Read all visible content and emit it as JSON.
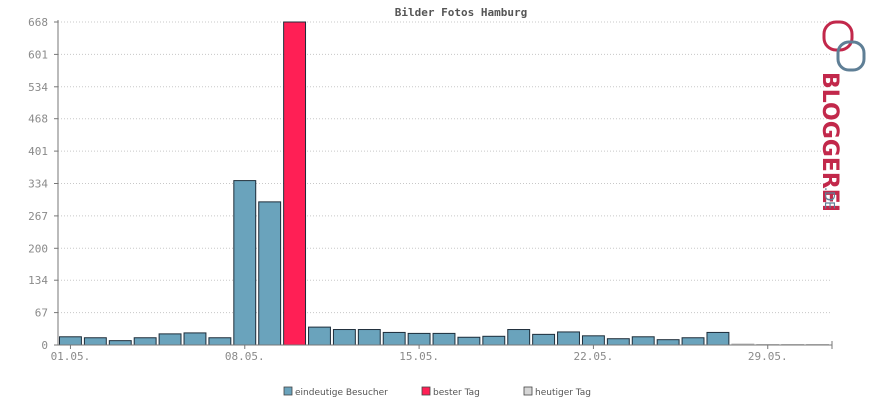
{
  "chart_data": {
    "type": "bar",
    "title": "Bilder Fotos Hamburg",
    "ylim": [
      0,
      668
    ],
    "yticks": [
      "0",
      "67",
      "134",
      "200",
      "267",
      "334",
      "401",
      "468",
      "534",
      "601",
      "668"
    ],
    "xtick_labels": [
      "01.05.",
      "08.05.",
      "15.05.",
      "22.05.",
      "29.05."
    ],
    "grid": true,
    "legend_position": "bottom",
    "categories": [
      "01.05.",
      "02.05.",
      "03.05.",
      "04.05.",
      "05.05.",
      "06.05.",
      "07.05.",
      "08.05.",
      "09.05.",
      "10.05.",
      "11.05.",
      "12.05.",
      "13.05.",
      "14.05.",
      "15.05.",
      "16.05.",
      "17.05.",
      "18.05.",
      "19.05.",
      "20.05.",
      "21.05.",
      "22.05.",
      "23.05.",
      "24.05.",
      "25.05.",
      "26.05.",
      "27.05.",
      "28.05.",
      "29.05.",
      "30.05.",
      "31.05."
    ],
    "values": [
      17,
      15,
      9,
      15,
      23,
      25,
      15,
      340,
      296,
      668,
      37,
      32,
      32,
      26,
      24,
      24,
      16,
      18,
      32,
      22,
      27,
      19,
      13,
      17,
      11,
      15,
      26,
      2,
      1,
      1,
      1
    ],
    "bar_kind": [
      "normal",
      "normal",
      "normal",
      "normal",
      "normal",
      "normal",
      "normal",
      "normal",
      "normal",
      "best",
      "normal",
      "normal",
      "normal",
      "normal",
      "normal",
      "normal",
      "normal",
      "normal",
      "normal",
      "normal",
      "normal",
      "normal",
      "normal",
      "normal",
      "normal",
      "normal",
      "normal",
      "today",
      "today",
      "today",
      "today"
    ],
    "legend": [
      {
        "label": "eindeutige Besucher",
        "color": "#6aa3bc"
      },
      {
        "label": "bester Tag",
        "color": "#ff1f55"
      },
      {
        "label": "heutiger Tag",
        "color": "#d6d6d6"
      }
    ]
  },
  "colors": {
    "normal": "#6aa3bc",
    "best": "#ff1f55",
    "today": "#e2e2e2",
    "bar_stroke": "#1d2d3a",
    "grid": "#c8c8c8",
    "axis": "#777777",
    "logo_red": "#c2284b",
    "logo_blue": "#5f7f96"
  },
  "logo": {
    "name": "BLOGGEREI",
    "suffix": ".DE"
  }
}
